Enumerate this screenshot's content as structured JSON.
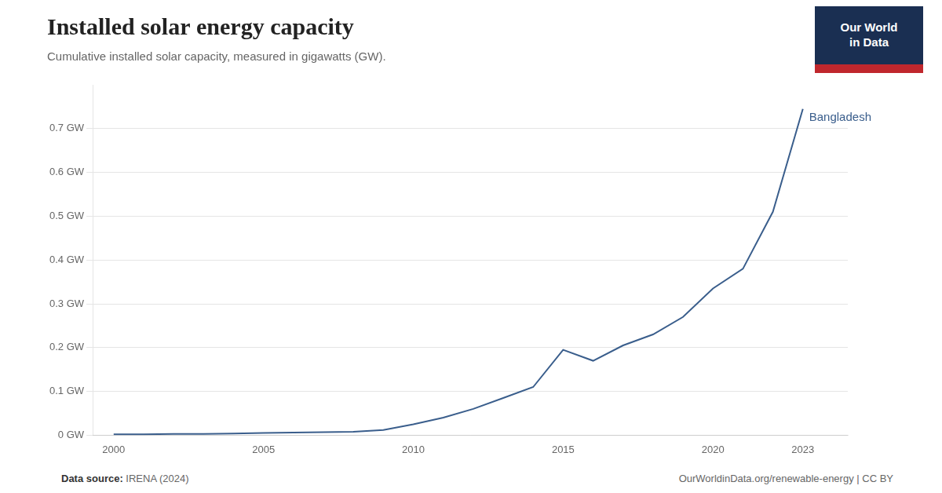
{
  "chart_data": {
    "type": "line",
    "title": "Installed solar energy capacity",
    "subtitle": "Cumulative installed solar capacity, measured in gigawatts (GW).",
    "x": [
      2000,
      2001,
      2002,
      2003,
      2004,
      2005,
      2006,
      2007,
      2008,
      2009,
      2010,
      2011,
      2012,
      2013,
      2014,
      2015,
      2016,
      2017,
      2018,
      2019,
      2020,
      2021,
      2022,
      2023
    ],
    "values": [
      0.002,
      0.002,
      0.003,
      0.003,
      0.004,
      0.005,
      0.006,
      0.007,
      0.008,
      0.012,
      0.025,
      0.04,
      0.06,
      0.085,
      0.11,
      0.195,
      0.17,
      0.205,
      0.23,
      0.27,
      0.335,
      0.38,
      0.51,
      0.745
    ],
    "color": "#3a5e8c",
    "xlim": [
      1999.3,
      2024.5
    ],
    "xticks": [
      2000,
      2005,
      2010,
      2015,
      2020,
      2023
    ],
    "ylim": [
      0,
      0.8
    ],
    "yticks": [
      {
        "value": 0,
        "label": "0 GW"
      },
      {
        "value": 0.1,
        "label": "0.1 GW"
      },
      {
        "value": 0.2,
        "label": "0.2 GW"
      },
      {
        "value": 0.3,
        "label": "0.3 GW"
      },
      {
        "value": 0.4,
        "label": "0.4 GW"
      },
      {
        "value": 0.5,
        "label": "0.5 GW"
      },
      {
        "value": 0.6,
        "label": "0.6 GW"
      },
      {
        "value": 0.7,
        "label": "0.7 GW"
      }
    ],
    "grid": "y",
    "annotations": [
      {
        "text": "Bangladesh",
        "x": 2023,
        "y": 0.745
      }
    ],
    "source_label": "Data source:",
    "source": "IRENA (2024)",
    "footer": "OurWorldinData.org/renewable-energy | CC BY",
    "logo": {
      "lines": [
        "Our World",
        "in Data"
      ],
      "colors": [
        "#1a2f52",
        "#c0272d"
      ]
    }
  }
}
